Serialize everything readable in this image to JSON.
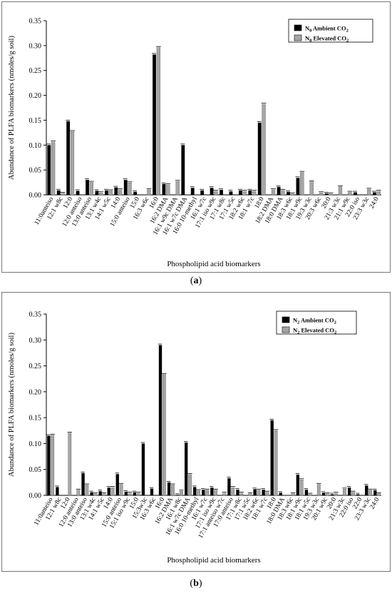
{
  "chart_data": [
    {
      "type": "bar",
      "panel_label": "a",
      "ylabel": "Abundance of PLFA biomarkers (nmoles/g soil)",
      "xlabel": "Phospholipid acid biomarkers",
      "ylim": [
        0,
        0.35
      ],
      "yticks": [
        "0.00",
        "0.05",
        "0.10",
        "0.15",
        "0.20",
        "0.25",
        "0.30",
        "0.35"
      ],
      "legend_position": "top-right",
      "colors": {
        "ambient": "#000000",
        "elevated": "#a6a6a6"
      },
      "categories": [
        "11:0anteiso",
        "12:1 w8c",
        "12:0",
        "12:0 anteiso",
        "13:0 anteiso",
        "13:1 w4c",
        "14:1 w5c",
        "14:0",
        "15:0 anteiso",
        "15:0",
        "16:3 w6c",
        "16:0",
        "16:2 DMA",
        "16:1 w9c DMA",
        "16:1 w7c DMA",
        "16:0 10-methyl",
        "16:1 w7c",
        "17:1 iso w9c",
        "17:1 w8c",
        "17:1 w5c",
        "18:2 w6c",
        "18:1 w7c",
        "18:0",
        "18:2 DMA",
        "18:0 DMA",
        "18:3 w6c",
        "18:1 w9c",
        "19:3 w3c",
        "20:3 w6c",
        "20:0",
        "21:3 w3c",
        "21:1 w9c",
        "22:0 iso",
        "23:3 w3c",
        "24:0"
      ],
      "series": [
        {
          "name": "N0 Ambient CO2",
          "legend_main": "N",
          "legend_sub": "0",
          "legend_rest": " Ambient CO",
          "legend_tail": "2",
          "values": [
            0.1,
            0.009,
            0.148,
            0.008,
            0.03,
            0.008,
            0.009,
            0.015,
            0.03,
            0.006,
            0,
            0.282,
            0.022,
            0,
            0.1,
            0.014,
            0.009,
            0.014,
            0.01,
            0.007,
            0.009,
            0.009,
            0.145,
            0,
            0.016,
            0.006,
            0.034,
            0,
            0,
            0.003,
            0,
            0,
            0.005,
            0,
            0.005
          ]
        },
        {
          "name": "N0 Elevated CO2",
          "legend_main": "N",
          "legend_sub": "0",
          "legend_rest": " Elevated CO",
          "legend_tail": "2",
          "values": [
            0.106,
            0.003,
            0.127,
            0,
            0.025,
            0.004,
            0.008,
            0.01,
            0.024,
            0,
            0.01,
            0.296,
            0.02,
            0.027,
            0,
            0,
            0,
            0.007,
            0,
            0,
            0.007,
            0.007,
            0.182,
            0.01,
            0.009,
            0.002,
            0.045,
            0.026,
            0.004,
            0.002,
            0.016,
            0.005,
            0,
            0.011,
            0.007
          ]
        }
      ]
    },
    {
      "type": "bar",
      "panel_label": "b",
      "ylabel": "Abundance of PLFA biomarkers (nmoles/g soil)",
      "xlabel": "Phospholipid acid biomarkers",
      "ylim": [
        0,
        0.35
      ],
      "yticks": [
        "0.00",
        "0.05",
        "0.10",
        "0.15",
        "0.20",
        "0.25",
        "0.30",
        "0.35"
      ],
      "legend_position": "top-right",
      "colors": {
        "ambient": "#000000",
        "elevated": "#a6a6a6"
      },
      "categories": [
        "11:0anteiso",
        "12:1 w8c",
        "12:0",
        "12:0 anteiso",
        "13:0 anteiso",
        "13:1 w4c",
        "14:1 w5c",
        "14:0",
        "15:0 anteiso",
        "15:1 iso w9c",
        "15:0",
        "15:3w3c",
        "16:3 w6c",
        "16:0",
        "16:2 DMA",
        "16:1 w8c",
        "16:1 w7c DMA",
        "16:0 10-methyl",
        "16:1 w7c",
        "17:1 iso w9c",
        "17:1 anteiso w7c",
        "17:0 anteiso",
        "17:1 w8c",
        "17:1 w5c",
        "18:2 w6c",
        "18:1 w7c",
        "18:0",
        "18:0 DMA",
        "18:3 w6c",
        "18:1 w9c",
        "18:1 w5c",
        "19:3 w3c",
        "20:1 w9c",
        "20:0",
        "21:3 w3c",
        "22:0 iso",
        "22:0",
        "23:3 w3c",
        "24:0"
      ],
      "series": [
        {
          "name": "N2 Ambient CO2",
          "legend_main": "N",
          "legend_sub": "2",
          "legend_rest": " Ambient CO",
          "legend_tail": "2",
          "values": [
            0.115,
            0.016,
            0,
            0,
            0.043,
            0.006,
            0.008,
            0.015,
            0.041,
            0.007,
            0.006,
            0.1,
            0.013,
            0.29,
            0.025,
            0.001,
            0.102,
            0.016,
            0.011,
            0.015,
            0,
            0.033,
            0.011,
            0,
            0.012,
            0.011,
            0.145,
            0.005,
            0,
            0.04,
            0.011,
            0,
            0.005,
            0.002,
            0,
            0.015,
            0.002,
            0.019,
            0.01
          ]
        },
        {
          "name": "N2 Elevated CO2",
          "legend_main": "N",
          "legend_sub": "2",
          "legend_rest": " Elevated CO",
          "legend_tail": "2",
          "values": [
            0.116,
            0,
            0.12,
            0.01,
            0.02,
            0.003,
            0.003,
            0.015,
            0.021,
            0.004,
            0.004,
            0,
            0,
            0.233,
            0.02,
            0.008,
            0.04,
            0.009,
            0.01,
            0.01,
            0.004,
            0.015,
            0.004,
            0.003,
            0.01,
            0.006,
            0.125,
            0,
            0.003,
            0.03,
            0.002,
            0.021,
            0.003,
            0.004,
            0.012,
            0.006,
            0,
            0.01,
            0.003
          ]
        }
      ]
    }
  ]
}
